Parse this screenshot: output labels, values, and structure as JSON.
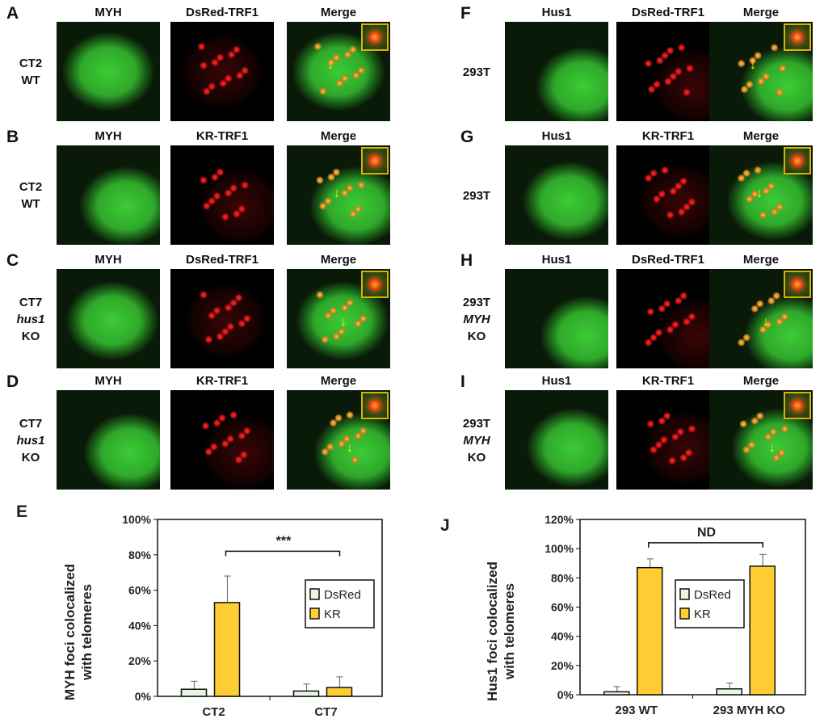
{
  "left_rows": [
    {
      "letter": "A",
      "label": [
        "CT2",
        "WT"
      ],
      "channels": [
        "MYH",
        "DsRed-TRF1",
        "Merge"
      ]
    },
    {
      "letter": "B",
      "label": [
        "CT2",
        "WT"
      ],
      "channels": [
        "MYH",
        "KR-TRF1",
        "Merge"
      ]
    },
    {
      "letter": "C",
      "label": [
        "CT7",
        "hus1",
        "KO"
      ],
      "channels": [
        "MYH",
        "DsRed-TRF1",
        "Merge"
      ]
    },
    {
      "letter": "D",
      "label": [
        "CT7",
        "hus1",
        "KO"
      ],
      "channels": [
        "MYH",
        "KR-TRF1",
        "Merge"
      ]
    }
  ],
  "right_rows": [
    {
      "letter": "F",
      "label": [
        "293T"
      ],
      "channels": [
        "Hus1",
        "DsRed-TRF1",
        "Merge"
      ]
    },
    {
      "letter": "G",
      "label": [
        "293T"
      ],
      "channels": [
        "Hus1",
        "KR-TRF1",
        "Merge"
      ]
    },
    {
      "letter": "H",
      "label": [
        "293T",
        "MYH",
        "KO"
      ],
      "channels": [
        "Hus1",
        "DsRed-TRF1",
        "Merge"
      ]
    },
    {
      "letter": "I",
      "label": [
        "293T",
        "MYH",
        "KO"
      ],
      "channels": [
        "Hus1",
        "KR-TRF1",
        "Merge"
      ]
    }
  ],
  "colors": {
    "green": "#3fd23a",
    "red": "#e02020",
    "merge": "#c8b020",
    "kr": "#ffcc33",
    "dsred": "#e6f6e0",
    "inset_border": "#d8b400",
    "arrow": "#ffee00"
  },
  "chart_data": [
    {
      "letter": "E",
      "type": "bar",
      "ylabel": "MYH foci colocalized with telomeres",
      "categories": [
        "CT2",
        "CT7"
      ],
      "ylim": [
        0,
        100
      ],
      "yticks": [
        "0%",
        "20%",
        "40%",
        "60%",
        "80%",
        "100%"
      ],
      "legend": "right",
      "grid": false,
      "series": [
        {
          "name": "DsRed",
          "values": [
            4,
            3
          ],
          "errors": [
            4.5,
            4
          ]
        },
        {
          "name": "KR",
          "values": [
            53,
            5
          ],
          "errors": [
            15,
            6
          ]
        }
      ],
      "annotation": "***"
    },
    {
      "letter": "J",
      "type": "bar",
      "ylabel": "Hus1 foci colocalized with telomeres",
      "categories": [
        "293 WT",
        "293 MYH KO"
      ],
      "ylim": [
        0,
        120
      ],
      "yticks": [
        "0%",
        "20%",
        "40%",
        "60%",
        "80%",
        "100%",
        "120%"
      ],
      "legend": "center",
      "grid": false,
      "series": [
        {
          "name": "DsRed",
          "values": [
            2,
            4
          ],
          "errors": [
            3.5,
            4
          ]
        },
        {
          "name": "KR",
          "values": [
            87,
            88
          ],
          "errors": [
            6,
            8
          ]
        }
      ],
      "annotation": "ND"
    }
  ]
}
